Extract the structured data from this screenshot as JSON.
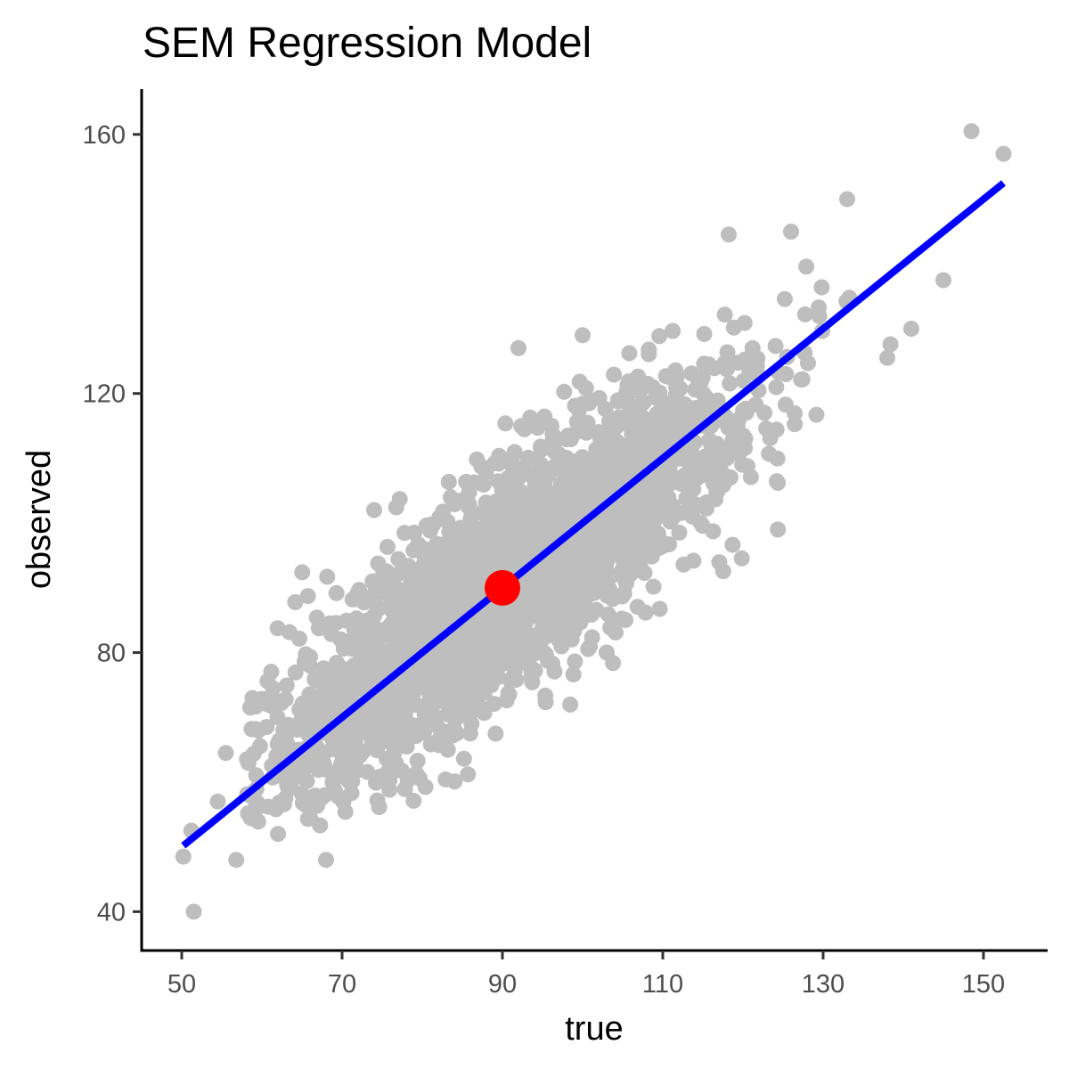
{
  "chart_data": {
    "type": "scatter",
    "title": "SEM Regression Model",
    "xlabel": "true",
    "ylabel": "observed",
    "xlim": [
      45,
      158
    ],
    "ylim": [
      34,
      167
    ],
    "x_ticks": [
      50,
      70,
      90,
      110,
      130,
      150
    ],
    "y_ticks": [
      40,
      80,
      120,
      160
    ],
    "grid": false,
    "colors": {
      "points": "#bebebe",
      "line": "#0000ff",
      "center": "#ff0000",
      "axis": "#000000"
    },
    "cloud": {
      "description_free": true,
      "center": [
        90,
        90
      ],
      "slope": 1.0,
      "along_sd": 15,
      "perp_sd": 6.5
    },
    "outliers": [
      {
        "x": 148.5,
        "y": 160.5
      },
      {
        "x": 152.5,
        "y": 157.0
      },
      {
        "x": 50.2,
        "y": 48.5
      },
      {
        "x": 51.5,
        "y": 40.0
      },
      {
        "x": 56.8,
        "y": 48.0
      },
      {
        "x": 51.2,
        "y": 52.5
      },
      {
        "x": 54.5,
        "y": 57.0
      },
      {
        "x": 55.5,
        "y": 64.5
      },
      {
        "x": 89.2,
        "y": 84.0
      },
      {
        "x": 118.0,
        "y": 110.0
      },
      {
        "x": 138.0,
        "y": 125.5
      },
      {
        "x": 141.0,
        "y": 130.0
      },
      {
        "x": 145.0,
        "y": 137.5
      },
      {
        "x": 133.0,
        "y": 150.0
      },
      {
        "x": 126.0,
        "y": 145.0
      },
      {
        "x": 100.0,
        "y": 129.0
      },
      {
        "x": 92.0,
        "y": 127.0
      },
      {
        "x": 74.0,
        "y": 102.0
      },
      {
        "x": 79.0,
        "y": 98.5
      },
      {
        "x": 97.0,
        "y": 82.0
      },
      {
        "x": 103.0,
        "y": 80.0
      },
      {
        "x": 66.0,
        "y": 57.0
      },
      {
        "x": 62.0,
        "y": 52.0
      },
      {
        "x": 68.0,
        "y": 48.0
      }
    ],
    "regression_line": {
      "x": [
        50.2,
        152.5
      ],
      "y": [
        50.2,
        152.5
      ]
    },
    "center_point": {
      "x": 90,
      "y": 90
    }
  }
}
